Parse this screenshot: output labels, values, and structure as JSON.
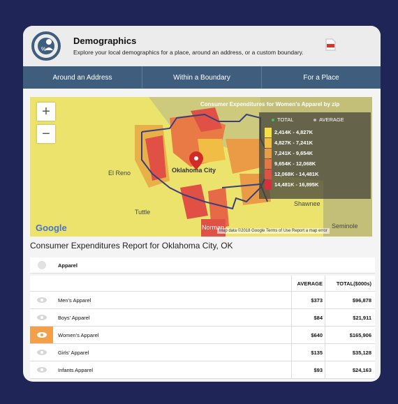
{
  "header": {
    "title": "Demographics",
    "subtitle": "Explore your local demographics for a place, around an address, or a custom boundary."
  },
  "tabs": [
    "Around an Address",
    "Within a Boundary",
    "For a Place"
  ],
  "map": {
    "title": "Consumer Expenditures for Women's Apparel by zip",
    "legend_head_total": "TOTAL",
    "legend_head_average": "AVERAGE",
    "legend": [
      {
        "label": "2,414K - 4,827K",
        "color": "#f7df46"
      },
      {
        "label": "4,827K - 7,241K",
        "color": "#f1bd45"
      },
      {
        "label": "7,241K - 9,654K",
        "color": "#eb9a45"
      },
      {
        "label": "9,654K - 12,068K",
        "color": "#e67645"
      },
      {
        "label": "12,068K - 14,481K",
        "color": "#e05045"
      },
      {
        "label": "14,481K - 16,895K",
        "color": "#d82e3d"
      }
    ],
    "zoom_in": "+",
    "zoom_out": "−",
    "google": "Google",
    "attribution": "Map data ©2018 Google   Terms of Use   Report a map error",
    "place_labels": {
      "city": "Oklahoma City",
      "el_reno": "El Reno",
      "tuttle": "Tuttle",
      "norman": "Norman",
      "shawnee": "Shawnee",
      "seminole": "Seminole"
    }
  },
  "report": {
    "title": "Consumer Expenditures Report for Oklahoma City, OK",
    "category": "Apparel",
    "col_average": "AVERAGE",
    "col_total": "TOTAL($000s)",
    "rows": [
      {
        "name": "Men's Apparel",
        "average": "$373",
        "total": "$96,878"
      },
      {
        "name": "Boys' Apparel",
        "average": "$84",
        "total": "$21,911"
      },
      {
        "name": "Women's Apparel",
        "average": "$640",
        "total": "$165,906"
      },
      {
        "name": "Girls' Apparel",
        "average": "$135",
        "total": "$35,128"
      },
      {
        "name": "Infants Apparel",
        "average": "$93",
        "total": "$24,163"
      }
    ]
  },
  "colors": {
    "accent": "#f2a04a",
    "tabbar": "#3f5e7e",
    "frame": "#1f2556"
  }
}
